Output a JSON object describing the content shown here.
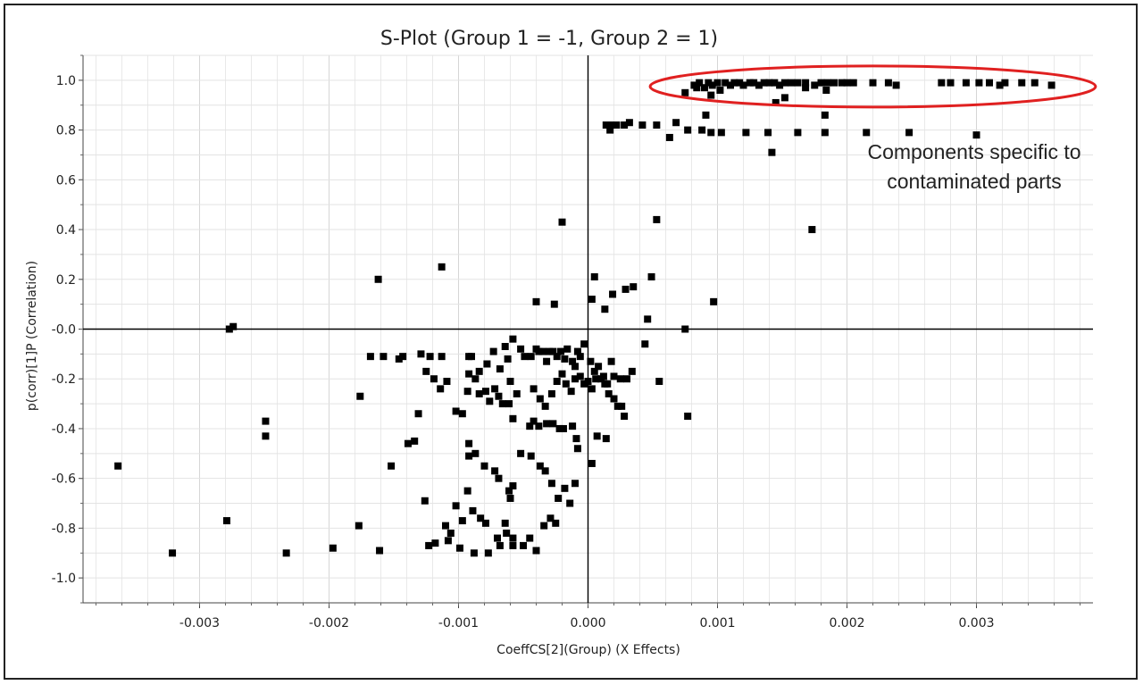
{
  "chart_data": {
    "type": "scatter",
    "title": "S-Plot (Group 1 = -1, Group 2 = 1)",
    "xlabel": "CoeffCS[2](Group) (X Effects)",
    "ylabel": "p(corr)[1]P (Correlation)",
    "xlim": [
      -0.0039,
      0.0039
    ],
    "ylim": [
      -1.1,
      1.1
    ],
    "x_ticks": [
      -0.003,
      -0.002,
      -0.001,
      0.0,
      0.001,
      0.002,
      0.003
    ],
    "x_tick_labels": [
      "-0.003",
      "-0.002",
      "-0.001",
      "0.000",
      "0.001",
      "0.002",
      "0.003"
    ],
    "y_ticks": [
      1.0,
      0.8,
      0.6,
      0.4,
      0.2,
      0.0,
      -0.2,
      -0.4,
      -0.6,
      -0.8,
      -1.0
    ],
    "y_tick_labels": [
      "1.0",
      "0.8",
      "0.6",
      "0.4",
      "0.2",
      "-0.0",
      "-0.2",
      "-0.4",
      "-0.6",
      "-0.8",
      "-1.0"
    ],
    "grid": true,
    "marker_color": "#000000",
    "highlight_color": "#e02020",
    "annotation": {
      "lines": [
        "Components specific to",
        "contaminated parts"
      ]
    },
    "points": [
      [
        0.00075,
        0.95
      ],
      [
        0.00082,
        0.98
      ],
      [
        0.00086,
        0.99
      ],
      [
        0.0009,
        0.97
      ],
      [
        0.00093,
        0.99
      ],
      [
        0.00096,
        0.98
      ],
      [
        0.001,
        0.99
      ],
      [
        0.00102,
        0.96
      ],
      [
        0.00106,
        0.99
      ],
      [
        0.0011,
        0.98
      ],
      [
        0.00113,
        0.99
      ],
      [
        0.00117,
        0.99
      ],
      [
        0.0012,
        0.98
      ],
      [
        0.00125,
        0.99
      ],
      [
        0.00128,
        0.99
      ],
      [
        0.00132,
        0.98
      ],
      [
        0.00136,
        0.99
      ],
      [
        0.0014,
        0.99
      ],
      [
        0.00144,
        0.99
      ],
      [
        0.00148,
        0.98
      ],
      [
        0.00152,
        0.99
      ],
      [
        0.00157,
        0.99
      ],
      [
        0.00162,
        0.99
      ],
      [
        0.00168,
        0.99
      ],
      [
        0.00175,
        0.98
      ],
      [
        0.0018,
        0.99
      ],
      [
        0.00185,
        0.99
      ],
      [
        0.0019,
        0.99
      ],
      [
        0.00196,
        0.99
      ],
      [
        0.002,
        0.99
      ],
      [
        0.00205,
        0.99
      ],
      [
        0.0022,
        0.99
      ],
      [
        0.00232,
        0.99
      ],
      [
        0.00238,
        0.98
      ],
      [
        0.00273,
        0.99
      ],
      [
        0.0028,
        0.99
      ],
      [
        0.00292,
        0.99
      ],
      [
        0.00302,
        0.99
      ],
      [
        0.0031,
        0.99
      ],
      [
        0.00318,
        0.98
      ],
      [
        0.00322,
        0.99
      ],
      [
        0.00335,
        0.99
      ],
      [
        0.00345,
        0.99
      ],
      [
        0.00358,
        0.98
      ],
      [
        0.00084,
        0.97
      ],
      [
        0.00095,
        0.94
      ],
      [
        0.00145,
        0.91
      ],
      [
        0.00152,
        0.93
      ],
      [
        0.00168,
        0.97
      ],
      [
        0.00184,
        0.96
      ],
      [
        0.00014,
        0.82
      ],
      [
        0.00018,
        0.82
      ],
      [
        0.00017,
        0.8
      ],
      [
        0.00022,
        0.82
      ],
      [
        0.00028,
        0.82
      ],
      [
        0.00032,
        0.83
      ],
      [
        0.00042,
        0.82
      ],
      [
        0.00053,
        0.82
      ],
      [
        0.00068,
        0.83
      ],
      [
        0.00077,
        0.8
      ],
      [
        0.00088,
        0.8
      ],
      [
        0.00091,
        0.86
      ],
      [
        0.00095,
        0.79
      ],
      [
        0.00103,
        0.79
      ],
      [
        0.00122,
        0.79
      ],
      [
        0.00139,
        0.79
      ],
      [
        0.00162,
        0.79
      ],
      [
        0.00183,
        0.86
      ],
      [
        0.00183,
        0.79
      ],
      [
        0.00215,
        0.79
      ],
      [
        0.00248,
        0.79
      ],
      [
        0.003,
        0.78
      ],
      [
        0.00063,
        0.77
      ],
      [
        0.00142,
        0.71
      ],
      [
        0.00173,
        0.4
      ],
      [
        0.00053,
        0.44
      ],
      [
        -0.0002,
        0.43
      ],
      [
        -0.00113,
        0.25
      ],
      [
        -0.00162,
        0.2
      ],
      [
        5e-05,
        0.21
      ],
      [
        0.00049,
        0.21
      ],
      [
        0.00035,
        0.17
      ],
      [
        0.00029,
        0.16
      ],
      [
        0.00019,
        0.14
      ],
      [
        3e-05,
        0.12
      ],
      [
        -0.0004,
        0.11
      ],
      [
        -0.00026,
        0.1
      ],
      [
        0.00097,
        0.11
      ],
      [
        0.00013,
        0.08
      ],
      [
        0.00046,
        0.04
      ],
      [
        -0.00277,
        0.0
      ],
      [
        -0.00274,
        0.01
      ],
      [
        0.00075,
        0.0
      ],
      [
        -0.00168,
        -0.11
      ],
      [
        -0.00158,
        -0.11
      ],
      [
        -0.00146,
        -0.12
      ],
      [
        -0.00143,
        -0.11
      ],
      [
        -0.00129,
        -0.1
      ],
      [
        -0.00122,
        -0.11
      ],
      [
        -0.00113,
        -0.11
      ],
      [
        -0.00092,
        -0.11
      ],
      [
        -0.0009,
        -0.11
      ],
      [
        -0.00058,
        -0.04
      ],
      [
        -0.00052,
        -0.08
      ],
      [
        -0.00049,
        -0.11
      ],
      [
        -0.00044,
        -0.11
      ],
      [
        -0.0004,
        -0.08
      ],
      [
        -0.00038,
        -0.09
      ],
      [
        -0.00035,
        -0.09
      ],
      [
        -0.00032,
        -0.13
      ],
      [
        -0.0003,
        -0.09
      ],
      [
        -0.00027,
        -0.09
      ],
      [
        -0.00024,
        -0.11
      ],
      [
        -0.00021,
        -0.09
      ],
      [
        -0.00018,
        -0.12
      ],
      [
        -0.00016,
        -0.08
      ],
      [
        -0.00012,
        -0.13
      ],
      [
        -0.0001,
        -0.15
      ],
      [
        -8e-05,
        -0.09
      ],
      [
        -6e-05,
        -0.11
      ],
      [
        -3e-05,
        -0.06
      ],
      [
        2e-05,
        -0.13
      ],
      [
        5e-05,
        -0.17
      ],
      [
        8e-05,
        -0.15
      ],
      [
        0.00012,
        -0.19
      ],
      [
        0.00015,
        -0.22
      ],
      [
        0.00018,
        -0.13
      ],
      [
        0.0002,
        -0.19
      ],
      [
        0.00025,
        -0.2
      ],
      [
        0.00034,
        -0.17
      ],
      [
        0.00044,
        -0.06
      ],
      [
        0.00055,
        -0.21
      ],
      [
        0.00077,
        -0.35
      ],
      [
        -0.00062,
        -0.12
      ],
      [
        -0.0006,
        -0.21
      ],
      [
        -0.00055,
        -0.26
      ],
      [
        -0.00042,
        -0.24
      ],
      [
        -0.00037,
        -0.28
      ],
      [
        -0.00033,
        -0.31
      ],
      [
        -0.00028,
        -0.26
      ],
      [
        -0.00024,
        -0.21
      ],
      [
        -0.0002,
        -0.18
      ],
      [
        -0.00017,
        -0.22
      ],
      [
        -0.00013,
        -0.25
      ],
      [
        -0.0001,
        -0.2
      ],
      [
        -6e-05,
        -0.19
      ],
      [
        -3e-05,
        -0.22
      ],
      [
        0.0,
        -0.21
      ],
      [
        3e-05,
        -0.24
      ],
      [
        6e-05,
        -0.2
      ],
      [
        0.0001,
        -0.2
      ],
      [
        0.00013,
        -0.22
      ],
      [
        0.00016,
        -0.26
      ],
      [
        0.0002,
        -0.28
      ],
      [
        0.00023,
        -0.31
      ],
      [
        0.00026,
        -0.31
      ],
      [
        0.00028,
        -0.35
      ],
      [
        0.0003,
        -0.2
      ],
      [
        -0.00068,
        -0.16
      ],
      [
        -0.00072,
        -0.24
      ],
      [
        -0.00076,
        -0.29
      ],
      [
        -0.00079,
        -0.25
      ],
      [
        -0.00084,
        -0.26
      ],
      [
        -0.00087,
        -0.2
      ],
      [
        -0.00093,
        -0.25
      ],
      [
        -0.00097,
        -0.34
      ],
      [
        -0.00102,
        -0.33
      ],
      [
        -0.00109,
        -0.21
      ],
      [
        -0.00114,
        -0.24
      ],
      [
        -0.00119,
        -0.2
      ],
      [
        -0.00125,
        -0.17
      ],
      [
        -0.00131,
        -0.34
      ],
      [
        -0.00134,
        -0.45
      ],
      [
        -0.00139,
        -0.46
      ],
      [
        -0.00176,
        -0.27
      ],
      [
        -0.00249,
        -0.37
      ],
      [
        -0.00249,
        -0.43
      ],
      [
        -0.00152,
        -0.55
      ],
      [
        -0.00363,
        -0.55
      ],
      [
        -0.00069,
        -0.27
      ],
      [
        -0.00066,
        -0.3
      ],
      [
        -0.00061,
        -0.3
      ],
      [
        -0.00058,
        -0.36
      ],
      [
        -0.00045,
        -0.39
      ],
      [
        -0.00042,
        -0.37
      ],
      [
        -0.00038,
        -0.39
      ],
      [
        -0.00032,
        -0.38
      ],
      [
        -0.00027,
        -0.38
      ],
      [
        -0.00022,
        -0.4
      ],
      [
        -0.00019,
        -0.4
      ],
      [
        -0.00012,
        -0.39
      ],
      [
        -9e-05,
        -0.44
      ],
      [
        -8e-05,
        -0.48
      ],
      [
        3e-05,
        -0.54
      ],
      [
        7e-05,
        -0.43
      ],
      [
        0.00014,
        -0.44
      ],
      [
        -0.00092,
        -0.46
      ],
      [
        -0.00092,
        -0.51
      ],
      [
        -0.00087,
        -0.5
      ],
      [
        -0.0008,
        -0.55
      ],
      [
        -0.00072,
        -0.57
      ],
      [
        -0.00069,
        -0.6
      ],
      [
        -0.00061,
        -0.65
      ],
      [
        -0.0006,
        -0.68
      ],
      [
        -0.00058,
        -0.63
      ],
      [
        -0.00052,
        -0.5
      ],
      [
        -0.00044,
        -0.51
      ],
      [
        -0.00037,
        -0.55
      ],
      [
        -0.00033,
        -0.57
      ],
      [
        -0.00028,
        -0.62
      ],
      [
        -0.00023,
        -0.68
      ],
      [
        -0.00018,
        -0.64
      ],
      [
        -0.00014,
        -0.7
      ],
      [
        -0.0001,
        -0.62
      ],
      [
        -0.00093,
        -0.65
      ],
      [
        -0.00097,
        -0.77
      ],
      [
        -0.00089,
        -0.73
      ],
      [
        -0.00083,
        -0.76
      ],
      [
        -0.00079,
        -0.78
      ],
      [
        -0.0007,
        -0.84
      ],
      [
        -0.00064,
        -0.78
      ],
      [
        -0.00058,
        -0.87
      ],
      [
        -0.0005,
        -0.87
      ],
      [
        -0.00045,
        -0.84
      ],
      [
        -0.0004,
        -0.89
      ],
      [
        -0.00034,
        -0.79
      ],
      [
        -0.00029,
        -0.76
      ],
      [
        -0.00025,
        -0.78
      ],
      [
        -0.00063,
        -0.82
      ],
      [
        -0.00058,
        -0.84
      ],
      [
        -0.00068,
        -0.87
      ],
      [
        -0.00077,
        -0.9
      ],
      [
        -0.00088,
        -0.9
      ],
      [
        -0.00099,
        -0.88
      ],
      [
        -0.00106,
        -0.82
      ],
      [
        -0.00108,
        -0.85
      ],
      [
        -0.0011,
        -0.79
      ],
      [
        -0.00118,
        -0.86
      ],
      [
        -0.00123,
        -0.87
      ],
      [
        -0.00126,
        -0.69
      ],
      [
        -0.00102,
        -0.71
      ],
      [
        -0.00177,
        -0.79
      ],
      [
        -0.00197,
        -0.88
      ],
      [
        -0.00161,
        -0.89
      ],
      [
        -0.00233,
        -0.9
      ],
      [
        -0.00279,
        -0.77
      ],
      [
        -0.00321,
        -0.9
      ],
      [
        -0.00092,
        -0.18
      ],
      [
        -0.00084,
        -0.17
      ],
      [
        -0.00078,
        -0.14
      ],
      [
        -0.00073,
        -0.09
      ],
      [
        -0.00064,
        -0.07
      ]
    ]
  }
}
